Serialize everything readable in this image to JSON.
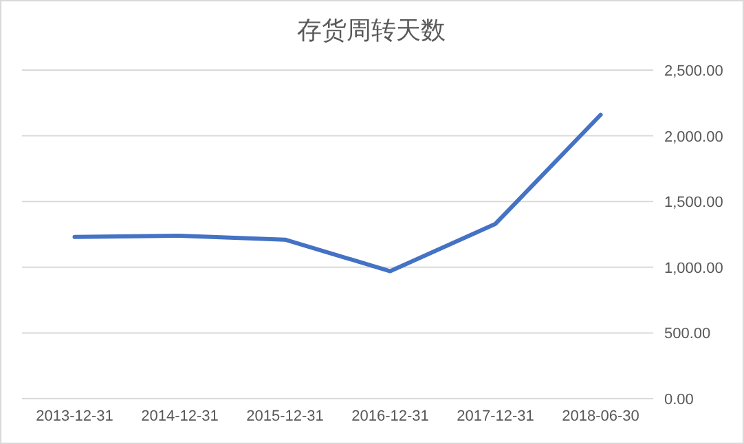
{
  "chart_data": {
    "type": "line",
    "title": "存货周转天数",
    "categories": [
      "2013-12-31",
      "2014-12-31",
      "2015-12-31",
      "2016-12-31",
      "2017-12-31",
      "2018-06-30"
    ],
    "series": [
      {
        "color": "#4472c4",
        "values": [
          1230,
          1240,
          1210,
          970,
          1330,
          2160
        ]
      }
    ],
    "ylim": [
      0,
      2500
    ],
    "yticks": [
      {
        "value": 0,
        "label": "0.00"
      },
      {
        "value": 500,
        "label": "500.00"
      },
      {
        "value": 1000,
        "label": "1,000.00"
      },
      {
        "value": 1500,
        "label": "1,500.00"
      },
      {
        "value": 2000,
        "label": "2,000.00"
      },
      {
        "value": 2500,
        "label": "2,500.00"
      }
    ],
    "grid": "y",
    "marker": "none",
    "line_style": "solid"
  }
}
